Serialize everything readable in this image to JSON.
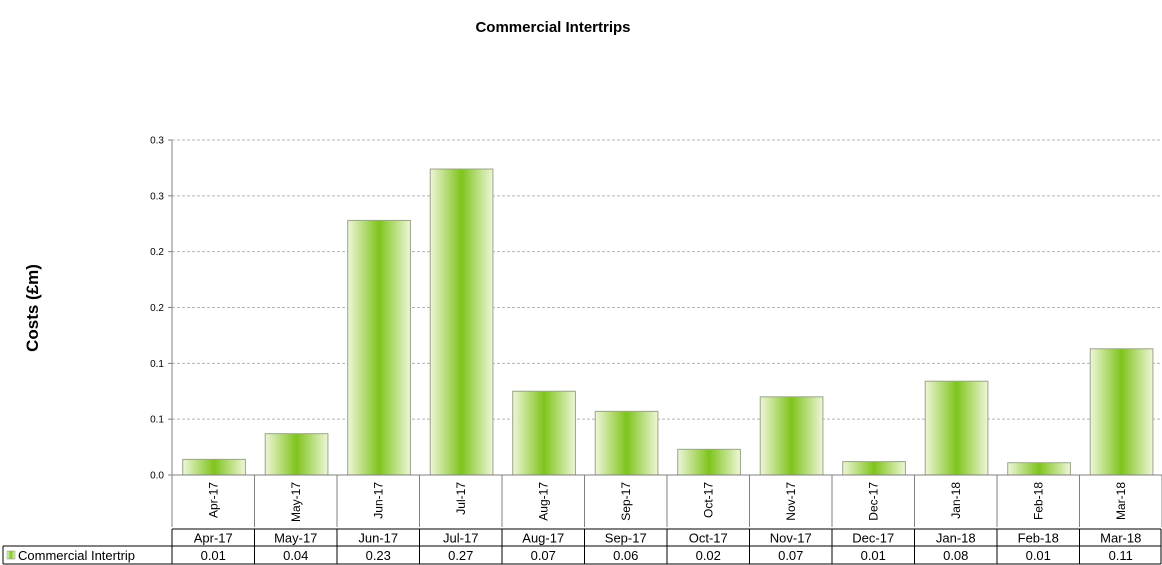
{
  "chart_data": {
    "type": "bar",
    "title": "Commercial Intertrips",
    "xlabel": "",
    "ylabel": "Costs (£m)",
    "categories": [
      "Apr-17",
      "May-17",
      "Jun-17",
      "Jul-17",
      "Aug-17",
      "Sep-17",
      "Oct-17",
      "Nov-17",
      "Dec-17",
      "Jan-18",
      "Feb-18",
      "Mar-18"
    ],
    "series": [
      {
        "name": "Commercial Intertrip",
        "values": [
          0.014,
          0.037,
          0.228,
          0.274,
          0.075,
          0.057,
          0.023,
          0.07,
          0.012,
          0.084,
          0.011,
          0.113
        ],
        "table_values": [
          "0.01",
          "0.04",
          "0.23",
          "0.27",
          "0.07",
          "0.06",
          "0.02",
          "0.07",
          "0.01",
          "0.08",
          "0.01",
          "0.11"
        ]
      }
    ],
    "ylim": [
      0,
      0.3
    ],
    "y_tick_labels": [
      "0.0",
      "0.1",
      "0.1",
      "0.2",
      "0.2",
      "0.3",
      "0.3"
    ],
    "grid": true,
    "legend": "data-table",
    "colors": {
      "bar_center": "#7fc41c",
      "bar_edge": "#e8f3cc",
      "bar_border": "#9aa48a",
      "grid": "#b3b3b3"
    }
  }
}
